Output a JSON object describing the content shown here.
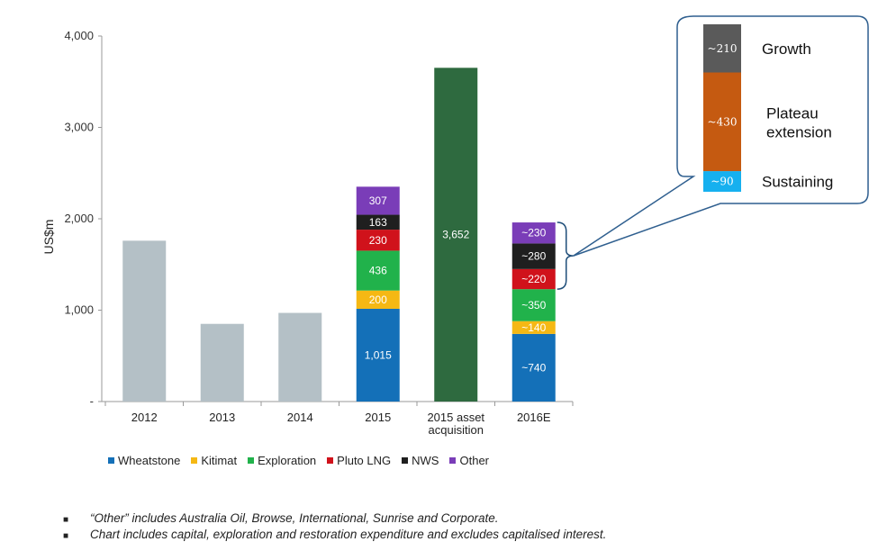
{
  "chart_data": {
    "type": "bar",
    "stacked": true,
    "ylabel": "US$m",
    "ylim": [
      0,
      4000
    ],
    "yticks": [
      {
        "value": 0,
        "label": "-"
      },
      {
        "value": 1000,
        "label": "1,000"
      },
      {
        "value": 2000,
        "label": "2,000"
      },
      {
        "value": 3000,
        "label": "3,000"
      },
      {
        "value": 4000,
        "label": "4,000"
      }
    ],
    "categories": [
      "2012",
      "2013",
      "2014",
      "2015",
      "2015 asset acquisition",
      "2016E"
    ],
    "category_lines": [
      [
        "2012"
      ],
      [
        "2013"
      ],
      [
        "2014"
      ],
      [
        "2015"
      ],
      [
        "2015 asset",
        "acquisition"
      ],
      [
        "2016E"
      ]
    ],
    "colors": {
      "total": "#b4c0c6",
      "acquisition": "#2e6a3f",
      "Wheatstone": "#1470b8",
      "Kitimat": "#f5b814",
      "Exploration": "#21b24b",
      "Pluto LNG": "#d0121b",
      "NWS": "#1f1f1f",
      "Other": "#7a3db8"
    },
    "simple_bars": [
      {
        "category": "2012",
        "value": 1760,
        "color_key": "total"
      },
      {
        "category": "2013",
        "value": 850,
        "color_key": "total"
      },
      {
        "category": "2014",
        "value": 970,
        "color_key": "total"
      },
      {
        "category": "2015 asset acquisition",
        "value": 3652,
        "label": "3,652",
        "color_key": "acquisition"
      }
    ],
    "series": [
      {
        "name": "Wheatstone",
        "values": {
          "2015": 1015,
          "2016E": 740
        },
        "labels": {
          "2015": "1,015",
          "2016E": "~740"
        }
      },
      {
        "name": "Kitimat",
        "values": {
          "2015": 200,
          "2016E": 140
        },
        "labels": {
          "2015": "200",
          "2016E": "~140"
        }
      },
      {
        "name": "Exploration",
        "values": {
          "2015": 436,
          "2016E": 350
        },
        "labels": {
          "2015": "436",
          "2016E": "~350"
        }
      },
      {
        "name": "Pluto LNG",
        "values": {
          "2015": 230,
          "2016E": 220
        },
        "labels": {
          "2015": "230",
          "2016E": "~220"
        }
      },
      {
        "name": "NWS",
        "values": {
          "2015": 163,
          "2016E": 280
        },
        "labels": {
          "2015": "163",
          "2016E": "~280"
        }
      },
      {
        "name": "Other",
        "values": {
          "2015": 307,
          "2016E": 230
        },
        "labels": {
          "2015": "307",
          "2016E": "~230"
        }
      }
    ],
    "legend": [
      "Wheatstone",
      "Kitimat",
      "Exploration",
      "Pluto LNG",
      "NWS",
      "Other"
    ],
    "legend_position": "bottom",
    "callout": {
      "segments": [
        {
          "label": "~90",
          "name": "Sustaining",
          "value": 90,
          "color": "#16b0ef"
        },
        {
          "label": "~430",
          "name_lines": [
            "Plateau",
            "extension"
          ],
          "value": 430,
          "color": "#c55a11"
        },
        {
          "label": "~210",
          "name": "Growth",
          "value": 210,
          "color": "#5a5a5a"
        }
      ]
    }
  },
  "notes": [
    "“Other” includes Australia Oil, Browse, International, Sunrise and Corporate.",
    "Chart includes capital, exploration and restoration expenditure and excludes capitalised interest."
  ]
}
